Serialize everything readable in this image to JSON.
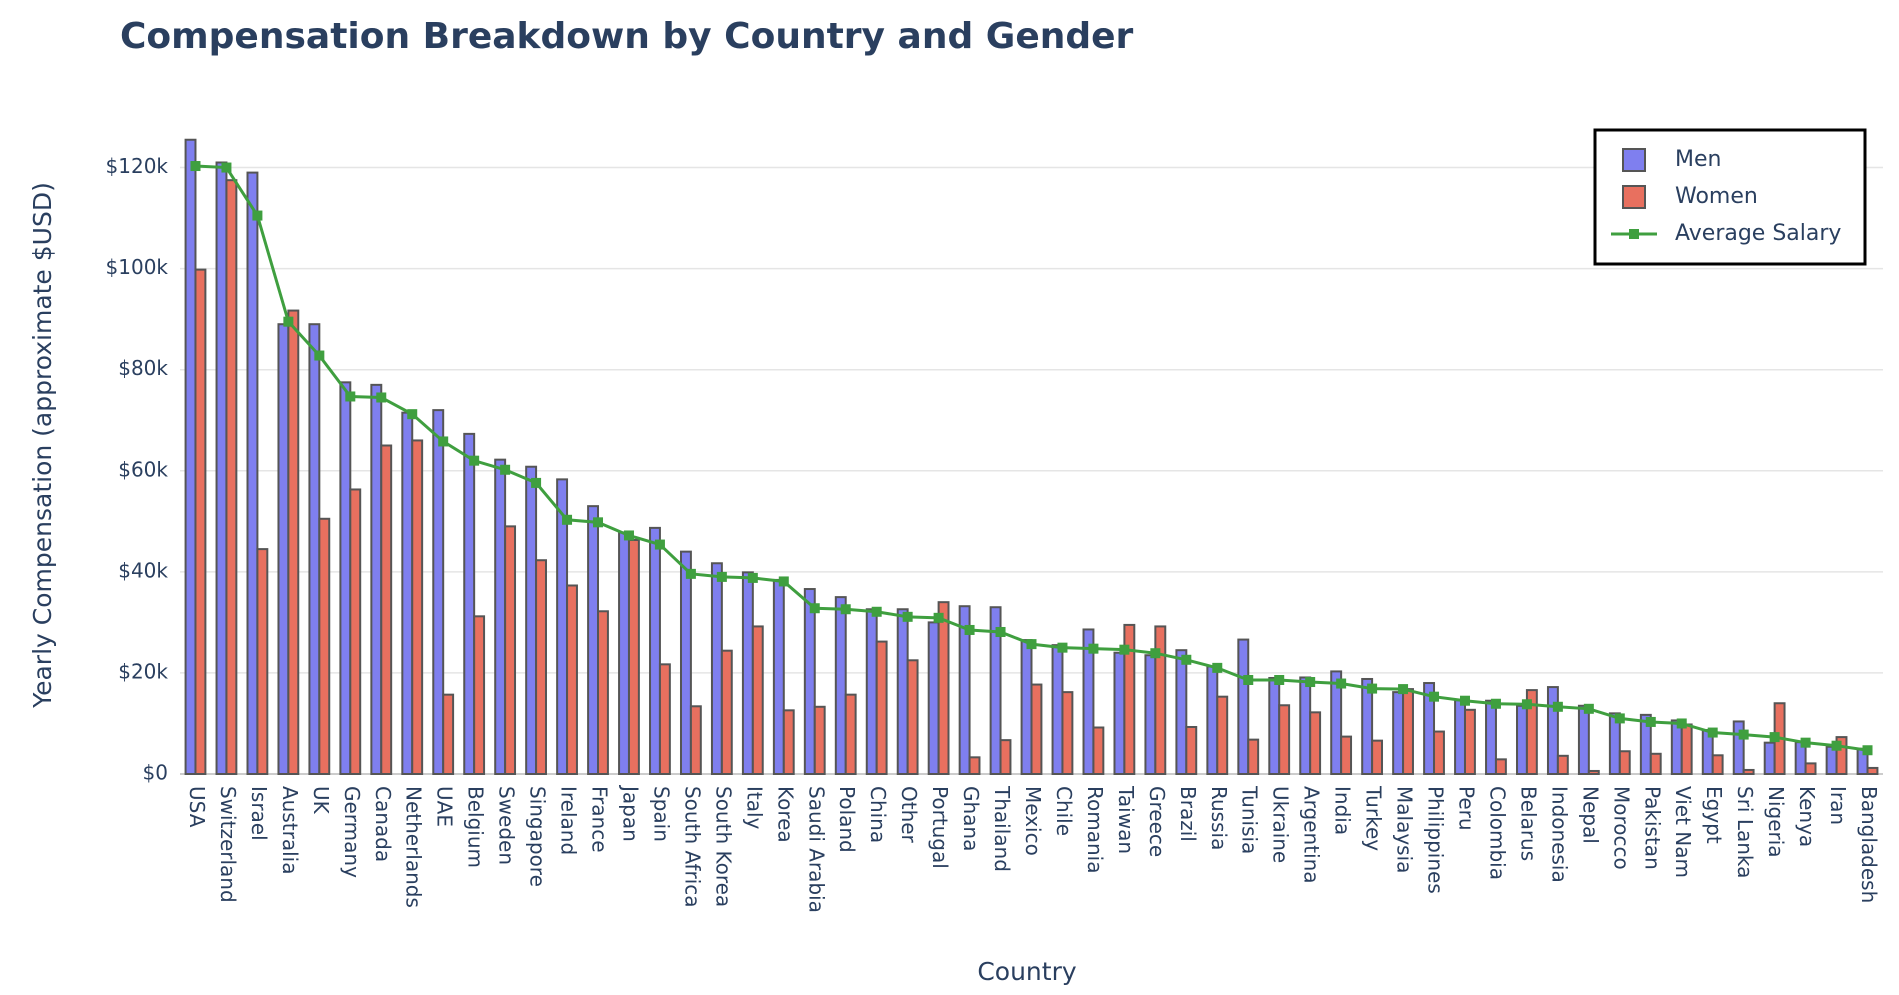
{
  "chart_data": {
    "type": "bar",
    "title": "Compensation Breakdown by Country and Gender",
    "x_label": "Country",
    "y_label": "Yearly Compensation (approximate $USD)",
    "categories": [
      "USA",
      "Switzerland",
      "Israel",
      "Australia",
      "UK",
      "Germany",
      "Canada",
      "Netherlands",
      "UAE",
      "Belgium",
      "Sweden",
      "Singapore",
      "Ireland",
      "France",
      "Japan",
      "Spain",
      "South Africa",
      "South Korea",
      "Italy",
      "Korea",
      "Saudi Arabia",
      "Poland",
      "China",
      "Other",
      "Portugal",
      "Ghana",
      "Thailand",
      "Mexico",
      "Chile",
      "Romania",
      "Taiwan",
      "Greece",
      "Brazil",
      "Russia",
      "Tunisia",
      "Ukraine",
      "Argentina",
      "India",
      "Turkey",
      "Malaysia",
      "Philippines",
      "Peru",
      "Colombia",
      "Belarus",
      "Indonesia",
      "Nepal",
      "Morocco",
      "Pakistan",
      "Viet Nam",
      "Egypt",
      "Sri Lanka",
      "Nigeria",
      "Kenya",
      "Iran",
      "Bangladesh"
    ],
    "series": [
      {
        "name": "Men",
        "type": "bar",
        "color": "#7f7fef",
        "values": [
          125500,
          121000,
          119000,
          89000,
          89000,
          77500,
          77000,
          71500,
          72000,
          67300,
          62200,
          60800,
          58300,
          53000,
          47800,
          48700,
          44000,
          41700,
          39900,
          38400,
          36600,
          35000,
          32600,
          32600,
          30000,
          33200,
          33000,
          26500,
          25500,
          28600,
          24000,
          23500,
          24500,
          21300,
          26600,
          19000,
          19100,
          20300,
          18800,
          16200,
          18000,
          14600,
          14500,
          13500,
          17200,
          13500,
          12000,
          11700,
          10600,
          8700,
          10400,
          6200,
          6300,
          5400,
          5000
        ]
      },
      {
        "name": "Women",
        "type": "bar",
        "color": "#e8705f",
        "values": [
          99800,
          117500,
          44500,
          91700,
          50500,
          56300,
          65000,
          66000,
          15700,
          31200,
          49000,
          42300,
          37300,
          32200,
          46300,
          21700,
          13400,
          24400,
          29200,
          12600,
          13300,
          15700,
          26200,
          22500,
          34000,
          3300,
          6700,
          17700,
          16200,
          9200,
          29500,
          29200,
          9300,
          15300,
          6800,
          13600,
          12200,
          7400,
          6600,
          16800,
          8400,
          12700,
          2900,
          16600,
          3600,
          600,
          4500,
          4000,
          9800,
          3700,
          800,
          14000,
          2100,
          7300,
          1200
        ]
      },
      {
        "name": "Average Salary",
        "type": "line",
        "color": "#3f9f3f",
        "values": [
          120300,
          120000,
          110500,
          89500,
          82800,
          74700,
          74500,
          71200,
          65800,
          62000,
          60200,
          57600,
          50300,
          49800,
          47200,
          45400,
          39600,
          39000,
          38800,
          38100,
          32800,
          32600,
          32100,
          31100,
          30900,
          28500,
          28100,
          25700,
          25000,
          24800,
          24600,
          23900,
          22600,
          21000,
          18600,
          18600,
          18200,
          17900,
          16900,
          16800,
          15300,
          14500,
          13900,
          13800,
          13300,
          12900,
          11000,
          10300,
          10000,
          8200,
          7800,
          7300,
          6200,
          5600,
          4700
        ]
      }
    ],
    "ylim": [
      0,
      130000
    ],
    "yticks": [
      {
        "value": 0,
        "label": "$0"
      },
      {
        "value": 20000,
        "label": "$20k"
      },
      {
        "value": 40000,
        "label": "$40k"
      },
      {
        "value": 60000,
        "label": "$60k"
      },
      {
        "value": 80000,
        "label": "$80k"
      },
      {
        "value": 100000,
        "label": "$100k"
      },
      {
        "value": 120000,
        "label": "$120k"
      }
    ],
    "grid": true,
    "legend": "top-right"
  }
}
